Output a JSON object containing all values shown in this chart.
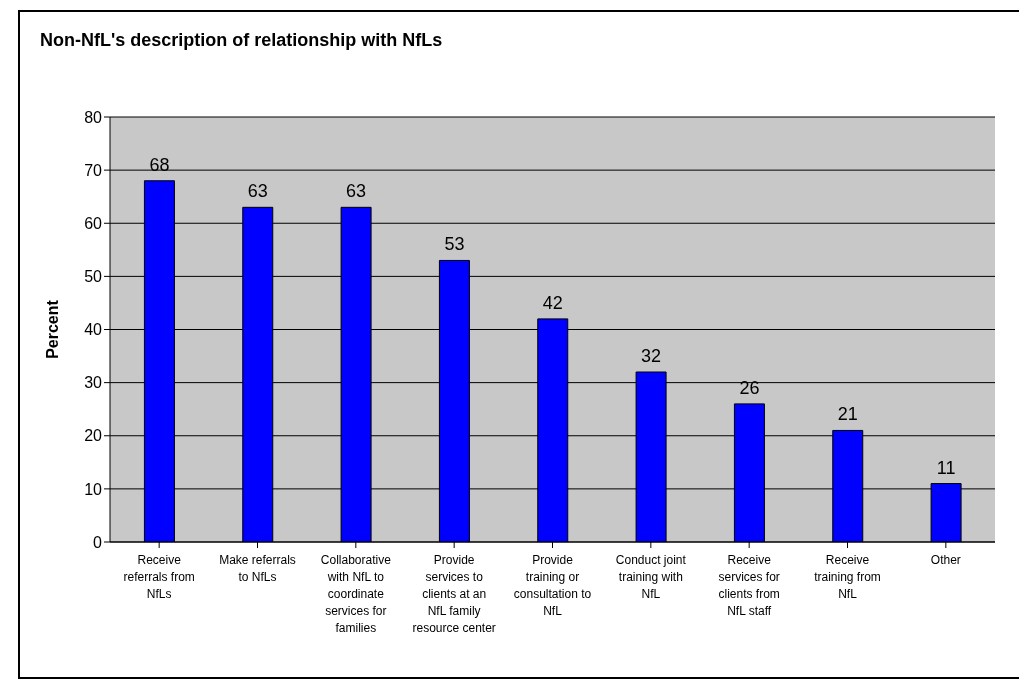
{
  "chart_data": {
    "type": "bar",
    "title": "Non-NfL's description of relationship with NfLs",
    "ylabel": "Percent",
    "categories": [
      "Receive referrals from NfLs",
      "Make referrals to NfLs",
      "Collaborative with NfL to coordinate services for families",
      "Provide services to clients at an NfL family resource center",
      "Provide training or consultation to NfL",
      "Conduct joint training with NfL",
      "Receive services for clients from NfL staff",
      "Receive training from NfL",
      "Other"
    ],
    "values": [
      68,
      63,
      63,
      53,
      42,
      32,
      26,
      21,
      11
    ],
    "color": "#0000ff",
    "ylim": [
      0,
      80
    ],
    "yticks": [
      0,
      10,
      20,
      30,
      40,
      50,
      60,
      70,
      80
    ],
    "grid": "y",
    "data_labels": true,
    "legend": false
  }
}
